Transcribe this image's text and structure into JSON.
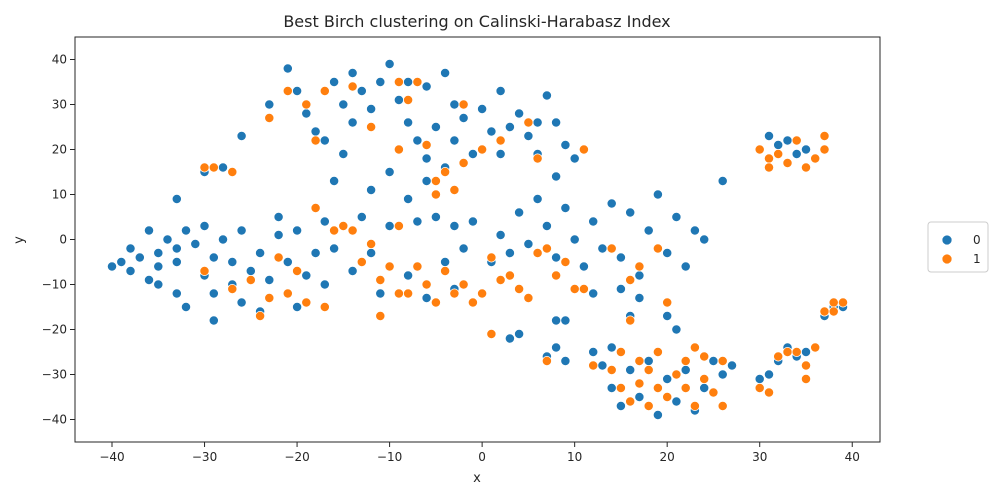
{
  "chart_data": {
    "type": "scatter",
    "title": "Best Birch clustering on Calinski-Harabasz Index",
    "xlabel": "x",
    "ylabel": "y",
    "xlim": [
      -44,
      43
    ],
    "ylim": [
      -45,
      45
    ],
    "xticks": [
      -40,
      -30,
      -20,
      -10,
      0,
      10,
      20,
      30,
      40
    ],
    "yticks": [
      -40,
      -30,
      -20,
      -10,
      0,
      10,
      20,
      30,
      40
    ],
    "grid": false,
    "legend": {
      "placement": "outside-right",
      "entries": [
        {
          "label": "0",
          "color": "#1f77b4"
        },
        {
          "label": "1",
          "color": "#ff7f0e"
        }
      ]
    },
    "series": [
      {
        "name": "0",
        "color": "#1f77b4",
        "points": [
          [
            -40,
            -6
          ],
          [
            -39,
            -5
          ],
          [
            -38,
            -2
          ],
          [
            -38,
            -7
          ],
          [
            -37,
            -4
          ],
          [
            -36,
            -9
          ],
          [
            -36,
            2
          ],
          [
            -35,
            -3
          ],
          [
            -35,
            -10
          ],
          [
            -34,
            0
          ],
          [
            -33,
            -5
          ],
          [
            -33,
            -12
          ],
          [
            -32,
            -15
          ],
          [
            -32,
            2
          ],
          [
            -33,
            9
          ],
          [
            -31,
            -1
          ],
          [
            -30,
            -8
          ],
          [
            -30,
            3
          ],
          [
            -29,
            -12
          ],
          [
            -29,
            -18
          ],
          [
            -28,
            0
          ],
          [
            -27,
            -5
          ],
          [
            -27,
            -10
          ],
          [
            -26,
            2
          ],
          [
            -26,
            -14
          ],
          [
            -25,
            -7
          ],
          [
            -24,
            -16
          ],
          [
            -24,
            -3
          ],
          [
            -23,
            -9
          ],
          [
            -22,
            5
          ],
          [
            -22,
            1
          ],
          [
            -21,
            -12
          ],
          [
            -21,
            -5
          ],
          [
            -20,
            -15
          ],
          [
            -20,
            2
          ],
          [
            -19,
            -8
          ],
          [
            -18,
            -3
          ],
          [
            -17,
            -10
          ],
          [
            -30,
            15
          ],
          [
            -28,
            16
          ],
          [
            -27,
            15
          ],
          [
            -26,
            23
          ],
          [
            -23,
            30
          ],
          [
            -21,
            38
          ],
          [
            -20,
            33
          ],
          [
            -19,
            28
          ],
          [
            -18,
            24
          ],
          [
            -17,
            22
          ],
          [
            -16,
            35
          ],
          [
            -15,
            30
          ],
          [
            -14,
            26
          ],
          [
            -14,
            37
          ],
          [
            -13,
            33
          ],
          [
            -12,
            29
          ],
          [
            -11,
            35
          ],
          [
            -10,
            39
          ],
          [
            -9,
            31
          ],
          [
            -8,
            35
          ],
          [
            -8,
            26
          ],
          [
            -7,
            22
          ],
          [
            -6,
            34
          ],
          [
            -6,
            18
          ],
          [
            -5,
            25
          ],
          [
            -4,
            16
          ],
          [
            -4,
            37
          ],
          [
            -3,
            30
          ],
          [
            -3,
            22
          ],
          [
            -2,
            27
          ],
          [
            -1,
            19
          ],
          [
            0,
            29
          ],
          [
            1,
            24
          ],
          [
            2,
            33
          ],
          [
            2,
            19
          ],
          [
            3,
            25
          ],
          [
            4,
            28
          ],
          [
            5,
            23
          ],
          [
            6,
            26
          ],
          [
            7,
            32
          ],
          [
            8,
            26
          ],
          [
            6,
            19
          ],
          [
            8,
            14
          ],
          [
            9,
            21
          ],
          [
            10,
            18
          ],
          [
            -15,
            19
          ],
          [
            -16,
            13
          ],
          [
            -12,
            11
          ],
          [
            -10,
            15
          ],
          [
            -8,
            9
          ],
          [
            -6,
            13
          ],
          [
            -5,
            5
          ],
          [
            -3,
            3
          ],
          [
            -2,
            -2
          ],
          [
            -1,
            4
          ],
          [
            1,
            -5
          ],
          [
            2,
            1
          ],
          [
            3,
            -3
          ],
          [
            4,
            6
          ],
          [
            5,
            -1
          ],
          [
            6,
            9
          ],
          [
            7,
            3
          ],
          [
            8,
            -4
          ],
          [
            9,
            7
          ],
          [
            10,
            0
          ],
          [
            11,
            -6
          ],
          [
            12,
            4
          ],
          [
            13,
            -2
          ],
          [
            14,
            8
          ],
          [
            15,
            -4
          ],
          [
            16,
            6
          ],
          [
            17,
            -8
          ],
          [
            18,
            2
          ],
          [
            19,
            10
          ],
          [
            20,
            -3
          ],
          [
            21,
            5
          ],
          [
            22,
            -6
          ],
          [
            23,
            2
          ],
          [
            24,
            0
          ],
          [
            15,
            -11
          ],
          [
            17,
            -13
          ],
          [
            12,
            -12
          ],
          [
            26,
            13
          ],
          [
            -14,
            -7
          ],
          [
            -12,
            -3
          ],
          [
            -10,
            3
          ],
          [
            -8,
            -8
          ],
          [
            -6,
            -13
          ],
          [
            -4,
            -5
          ],
          [
            -3,
            -11
          ],
          [
            -7,
            4
          ],
          [
            -11,
            -12
          ],
          [
            -13,
            5
          ],
          [
            -16,
            -2
          ],
          [
            -17,
            4
          ],
          [
            3,
            -22
          ],
          [
            4,
            -21
          ],
          [
            7,
            -26
          ],
          [
            8,
            -24
          ],
          [
            9,
            -27
          ],
          [
            8,
            -18
          ],
          [
            9,
            -18
          ],
          [
            12,
            -25
          ],
          [
            13,
            -28
          ],
          [
            14,
            -33
          ],
          [
            15,
            -37
          ],
          [
            16,
            -29
          ],
          [
            17,
            -35
          ],
          [
            18,
            -27
          ],
          [
            19,
            -39
          ],
          [
            20,
            -31
          ],
          [
            21,
            -36
          ],
          [
            22,
            -29
          ],
          [
            23,
            -38
          ],
          [
            24,
            -33
          ],
          [
            25,
            -27
          ],
          [
            26,
            -30
          ],
          [
            27,
            -28
          ],
          [
            14,
            -24
          ],
          [
            16,
            -17
          ],
          [
            20,
            -17
          ],
          [
            21,
            -20
          ],
          [
            31,
            23
          ],
          [
            32,
            21
          ],
          [
            33,
            22
          ],
          [
            34,
            19
          ],
          [
            35,
            20
          ],
          [
            36,
            18
          ],
          [
            33,
            -24
          ],
          [
            34,
            -26
          ],
          [
            35,
            -25
          ],
          [
            36,
            -24
          ],
          [
            30,
            -31
          ],
          [
            31,
            -30
          ],
          [
            32,
            -27
          ],
          [
            37,
            -17
          ],
          [
            38,
            -15
          ],
          [
            39,
            -15
          ],
          [
            37,
            -16
          ],
          [
            -33,
            -2
          ],
          [
            -35,
            -6
          ],
          [
            -29,
            -4
          ]
        ]
      },
      {
        "name": "1",
        "color": "#ff7f0e",
        "points": [
          [
            -30,
            16
          ],
          [
            -29,
            16
          ],
          [
            -27,
            15
          ],
          [
            -30,
            -7
          ],
          [
            -27,
            -11
          ],
          [
            -25,
            -9
          ],
          [
            -24,
            -17
          ],
          [
            -23,
            -13
          ],
          [
            -22,
            -4
          ],
          [
            -21,
            -12
          ],
          [
            -20,
            -7
          ],
          [
            -19,
            -14
          ],
          [
            -18,
            7
          ],
          [
            -17,
            -15
          ],
          [
            -16,
            2
          ],
          [
            -15,
            3
          ],
          [
            -14,
            2
          ],
          [
            -13,
            -5
          ],
          [
            -12,
            -1
          ],
          [
            -11,
            -17
          ],
          [
            -11,
            -9
          ],
          [
            -10,
            -6
          ],
          [
            -9,
            -12
          ],
          [
            -9,
            3
          ],
          [
            -8,
            -12
          ],
          [
            -7,
            -6
          ],
          [
            -6,
            -10
          ],
          [
            -5,
            -14
          ],
          [
            -4,
            -7
          ],
          [
            -3,
            -12
          ],
          [
            -2,
            -10
          ],
          [
            -1,
            -14
          ],
          [
            0,
            -12
          ],
          [
            1,
            -4
          ],
          [
            1,
            -21
          ],
          [
            2,
            -9
          ],
          [
            3,
            -8
          ],
          [
            4,
            -11
          ],
          [
            5,
            -13
          ],
          [
            6,
            -3
          ],
          [
            7,
            -2
          ],
          [
            7,
            -27
          ],
          [
            8,
            -8
          ],
          [
            9,
            -5
          ],
          [
            10,
            -11
          ],
          [
            11,
            -11
          ],
          [
            14,
            -2
          ],
          [
            16,
            -9
          ],
          [
            17,
            -6
          ],
          [
            19,
            -2
          ],
          [
            20,
            -14
          ],
          [
            -23,
            27
          ],
          [
            -21,
            33
          ],
          [
            -19,
            30
          ],
          [
            -18,
            22
          ],
          [
            -17,
            33
          ],
          [
            -14,
            34
          ],
          [
            -12,
            25
          ],
          [
            -9,
            35
          ],
          [
            -8,
            31
          ],
          [
            -6,
            21
          ],
          [
            -5,
            13
          ],
          [
            -4,
            15
          ],
          [
            -3,
            11
          ],
          [
            -2,
            30
          ],
          [
            -2,
            17
          ],
          [
            0,
            20
          ],
          [
            2,
            22
          ],
          [
            5,
            26
          ],
          [
            6,
            18
          ],
          [
            11,
            20
          ],
          [
            -7,
            35
          ],
          [
            -5,
            10
          ],
          [
            -9,
            20
          ],
          [
            12,
            -28
          ],
          [
            14,
            -29
          ],
          [
            15,
            -25
          ],
          [
            15,
            -33
          ],
          [
            16,
            -36
          ],
          [
            16,
            -18
          ],
          [
            17,
            -32
          ],
          [
            17,
            -27
          ],
          [
            18,
            -29
          ],
          [
            18,
            -37
          ],
          [
            19,
            -25
          ],
          [
            19,
            -33
          ],
          [
            20,
            -35
          ],
          [
            21,
            -30
          ],
          [
            22,
            -27
          ],
          [
            22,
            -33
          ],
          [
            23,
            -24
          ],
          [
            23,
            -37
          ],
          [
            24,
            -31
          ],
          [
            24,
            -26
          ],
          [
            25,
            -34
          ],
          [
            26,
            -27
          ],
          [
            26,
            -37
          ],
          [
            20,
            -14
          ],
          [
            30,
            -33
          ],
          [
            31,
            -34
          ],
          [
            30,
            20
          ],
          [
            31,
            18
          ],
          [
            31,
            16
          ],
          [
            32,
            19
          ],
          [
            33,
            17
          ],
          [
            34,
            22
          ],
          [
            35,
            16
          ],
          [
            36,
            18
          ],
          [
            37,
            23
          ],
          [
            37,
            20
          ],
          [
            32,
            -26
          ],
          [
            33,
            -25
          ],
          [
            34,
            -25
          ],
          [
            35,
            -28
          ],
          [
            36,
            -24
          ],
          [
            35,
            -31
          ],
          [
            37,
            -16
          ],
          [
            38,
            -14
          ],
          [
            39,
            -14
          ],
          [
            38,
            -16
          ]
        ]
      }
    ]
  }
}
